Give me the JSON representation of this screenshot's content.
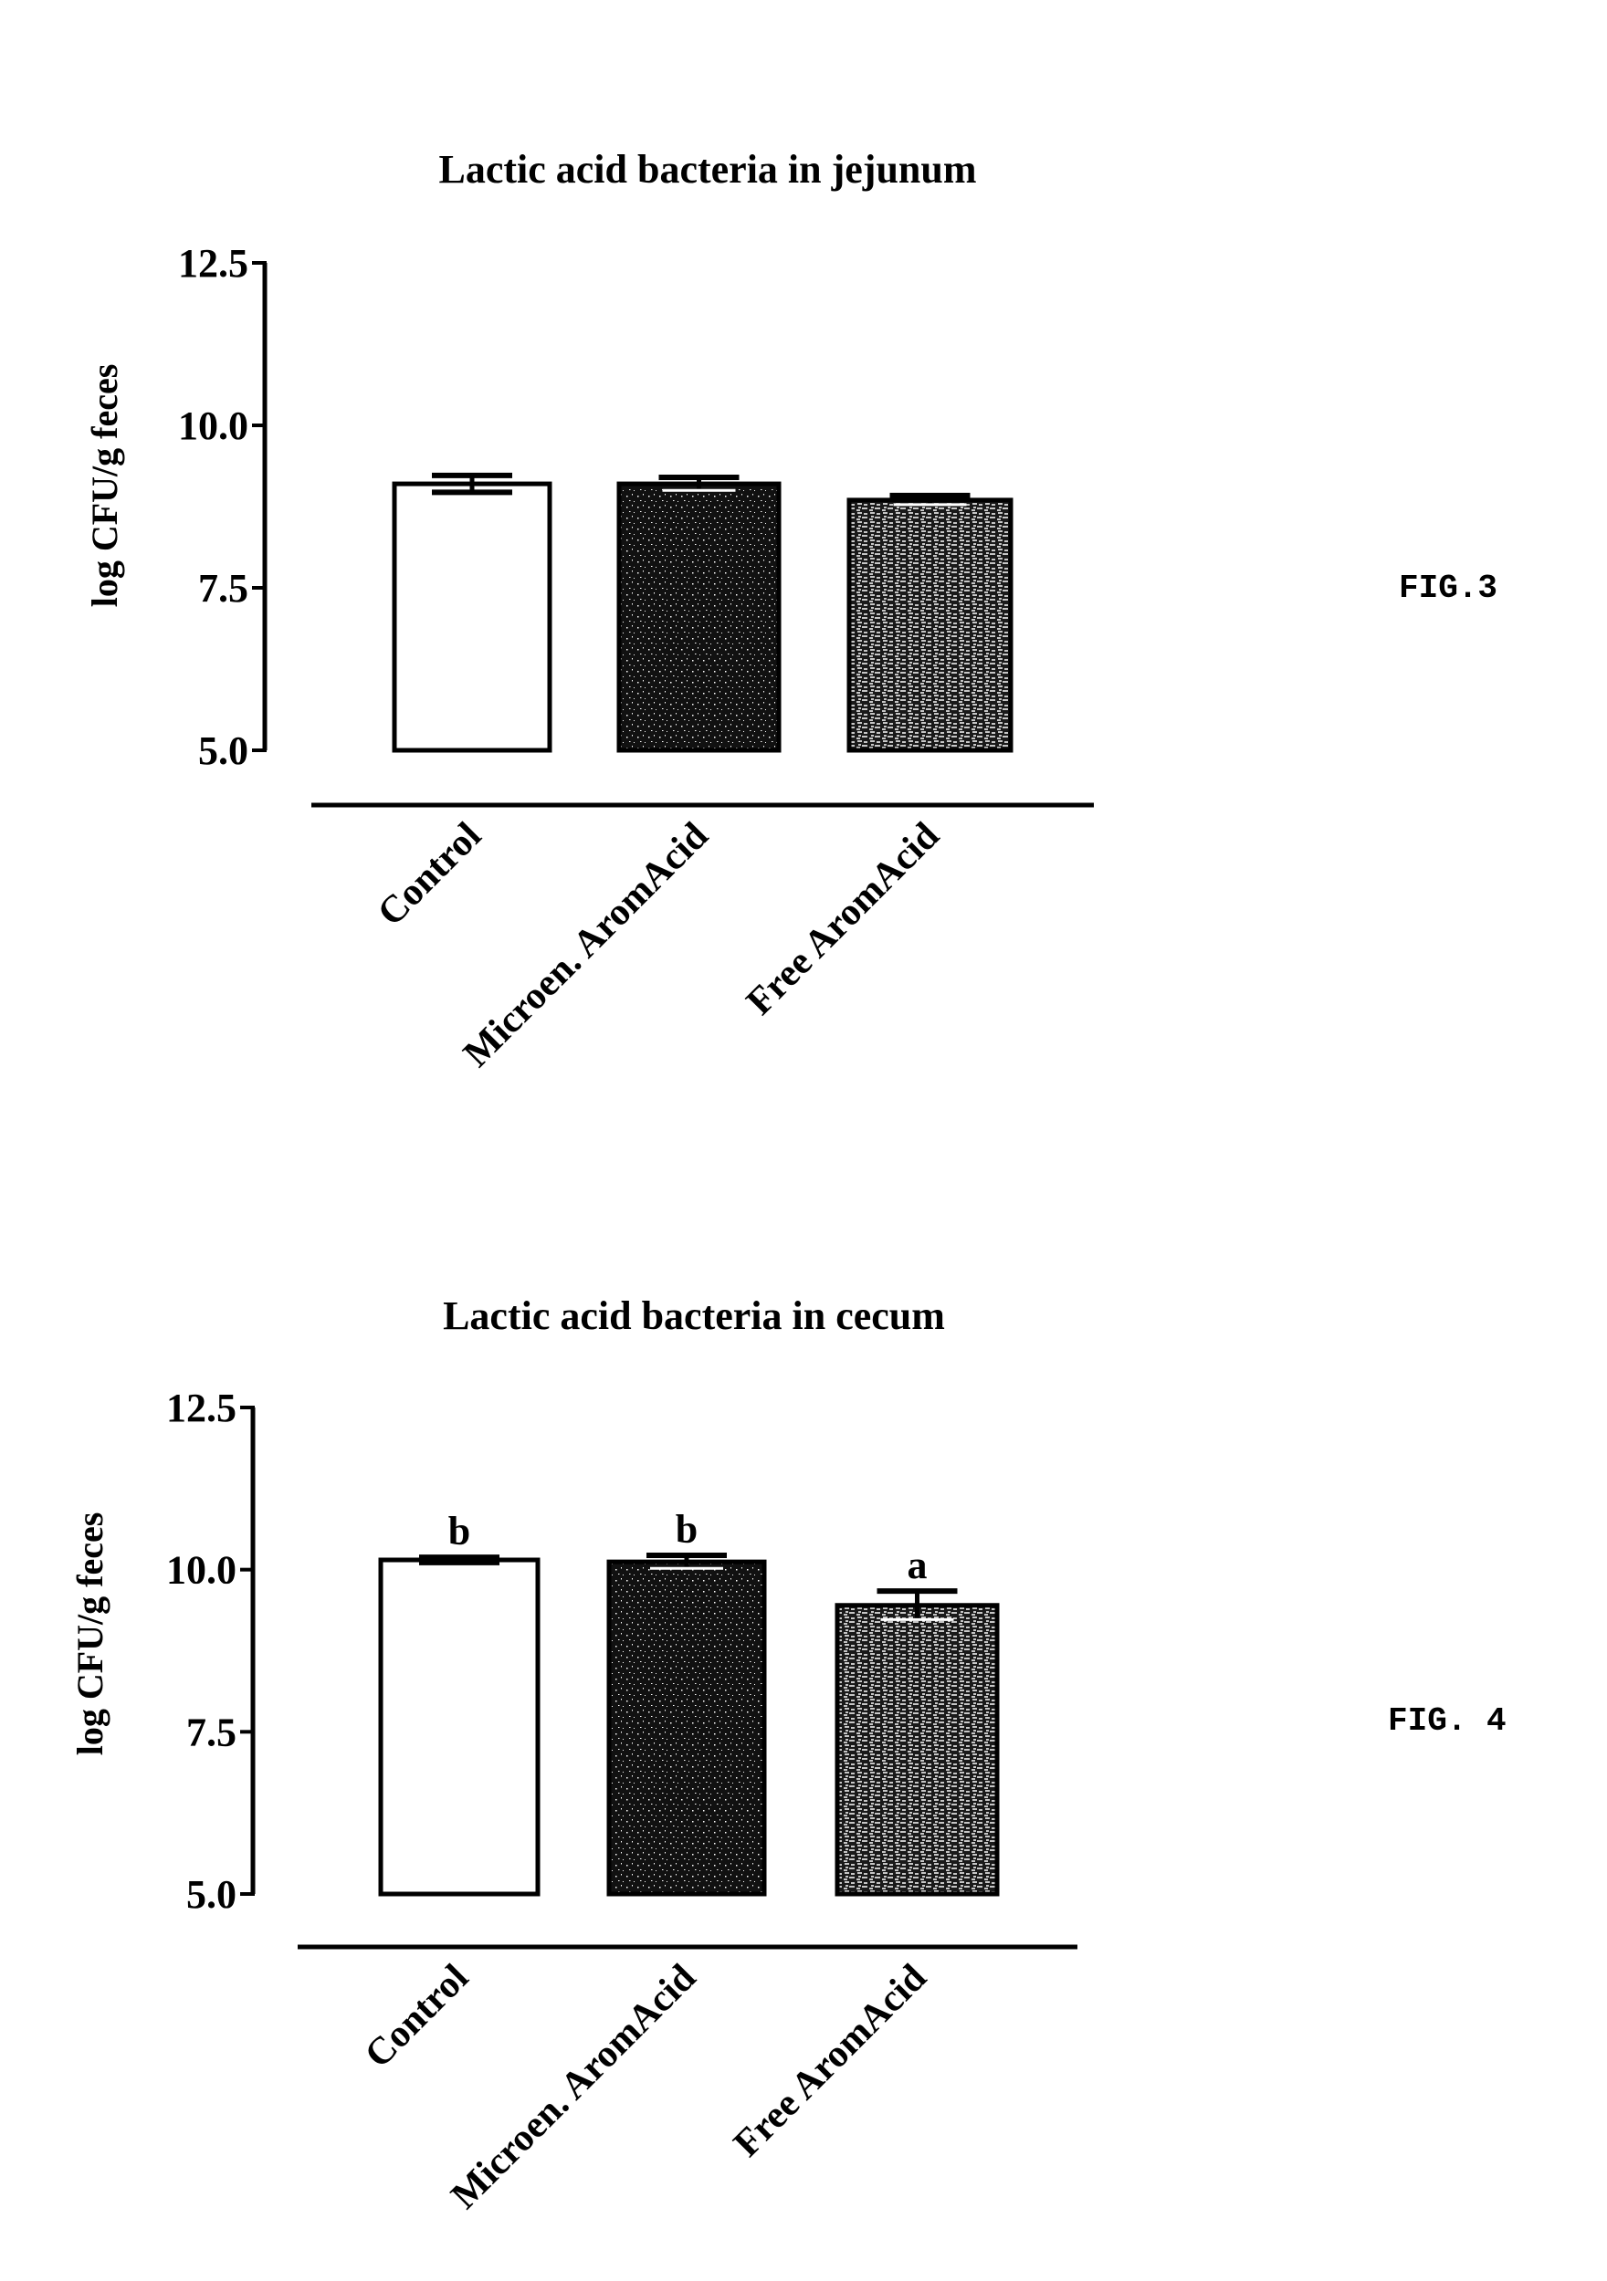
{
  "figures": [
    {
      "fig_label": "FIG.3",
      "title": "Lactic acid bacteria in jejunum",
      "ylabel": "log CFU/g feces",
      "yticks": [
        "12.5",
        "10.0",
        "7.5",
        "5.0"
      ]
    },
    {
      "fig_label": "FIG. 4",
      "title": "Lactic acid bacteria in cecum",
      "ylabel": "log CFU/g feces",
      "yticks": [
        "12.5",
        "10.0",
        "7.5",
        "5.0"
      ]
    }
  ],
  "chart_data": [
    {
      "type": "bar",
      "title": "Lactic acid bacteria in jejunum",
      "figure": "FIG.3",
      "xlabel": "",
      "ylabel": "log CFU/g feces",
      "ylim": [
        5.0,
        12.5
      ],
      "yticks": [
        5.0,
        7.5,
        10.0,
        12.5
      ],
      "categories": [
        "Control",
        "Microen. AromAcid",
        "Free AromAcid"
      ],
      "values": [
        9.1,
        9.1,
        8.85
      ],
      "error": [
        0.13,
        0.1,
        0.07
      ],
      "significance_letters": [
        "",
        "",
        ""
      ],
      "bar_fills": [
        "white",
        "dark stipple",
        "light textured"
      ],
      "grid": false,
      "legend": null
    },
    {
      "type": "bar",
      "title": "Lactic acid bacteria in cecum",
      "figure": "FIG. 4",
      "xlabel": "",
      "ylabel": "log CFU/g feces",
      "ylim": [
        5.0,
        12.5
      ],
      "yticks": [
        5.0,
        7.5,
        10.0,
        12.5
      ],
      "categories": [
        "Control",
        "Microen. AromAcid",
        "Free AromAcid"
      ],
      "values": [
        10.15,
        10.12,
        9.45
      ],
      "error": [
        0.04,
        0.1,
        0.22
      ],
      "significance_letters": [
        "b",
        "b",
        "a"
      ],
      "bar_fills": [
        "white",
        "dark stipple",
        "light textured"
      ],
      "grid": false,
      "legend": null
    }
  ]
}
